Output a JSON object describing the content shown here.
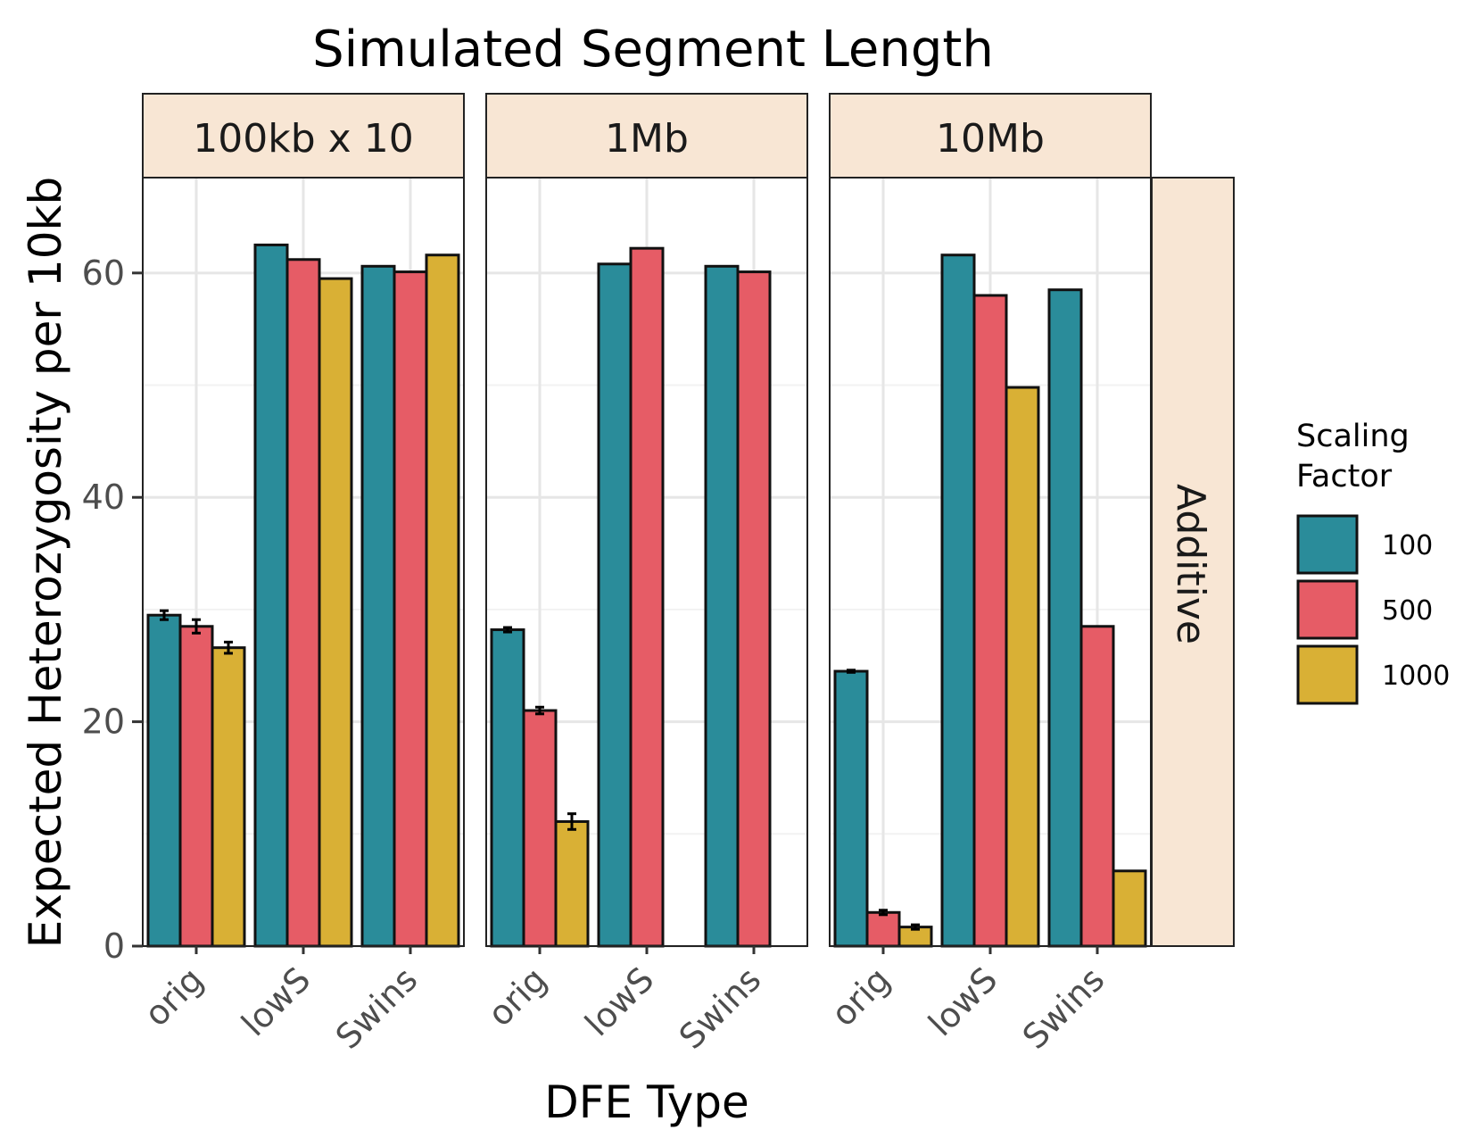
{
  "chart_data": {
    "type": "bar",
    "title": "Simulated Segment Length",
    "xlabel": "DFE Type",
    "ylabel": "Expected Heterozygosity per 10kb",
    "row_strip": "Additive",
    "categories": [
      "orig",
      "lowS",
      "Swins"
    ],
    "ylim": [
      0,
      68.5
    ],
    "yticks": [
      0,
      20,
      40,
      60
    ],
    "grid": true,
    "legend": {
      "title": "Scaling Factor",
      "placement": "right",
      "entries": [
        {
          "label": "100",
          "color": "#2a8c9a"
        },
        {
          "label": "500",
          "color": "#e65c66"
        },
        {
          "label": "1000",
          "color": "#d9b035"
        }
      ]
    },
    "panels": [
      {
        "label": "100kb x 10",
        "series": [
          {
            "name": "100",
            "values": [
              29.5,
              62.5,
              60.6
            ],
            "errors": [
              0.4,
              0,
              0
            ]
          },
          {
            "name": "500",
            "values": [
              28.5,
              61.2,
              60.1
            ],
            "errors": [
              0.6,
              0,
              0
            ]
          },
          {
            "name": "1000",
            "values": [
              26.6,
              59.5,
              61.6
            ],
            "errors": [
              0.5,
              0,
              0
            ]
          }
        ]
      },
      {
        "label": "1Mb",
        "series": [
          {
            "name": "100",
            "values": [
              28.2,
              60.8,
              60.6
            ],
            "errors": [
              0.2,
              0,
              0
            ]
          },
          {
            "name": "500",
            "values": [
              21.0,
              62.2,
              60.1
            ],
            "errors": [
              0.3,
              0,
              0
            ]
          },
          {
            "name": "1000",
            "values": [
              11.1,
              0,
              0
            ],
            "errors": [
              0.7,
              0,
              0
            ]
          }
        ]
      },
      {
        "label": "10Mb",
        "series": [
          {
            "name": "100",
            "values": [
              24.5,
              61.6,
              58.5
            ],
            "errors": [
              0.1,
              0,
              0
            ]
          },
          {
            "name": "500",
            "values": [
              3.0,
              58.0,
              28.5
            ],
            "errors": [
              0.2,
              0,
              0
            ]
          },
          {
            "name": "1000",
            "values": [
              1.7,
              49.8,
              6.7
            ],
            "errors": [
              0.2,
              0,
              0
            ]
          }
        ]
      }
    ]
  }
}
